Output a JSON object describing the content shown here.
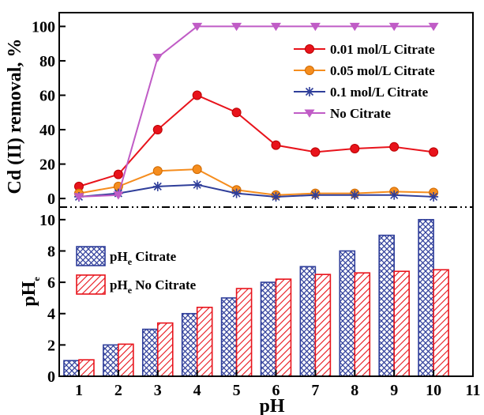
{
  "chart_data": [
    {
      "type": "line",
      "ylabel": "Cd (II) removal, %",
      "xlim": [
        0.5,
        11
      ],
      "ylim": [
        -5,
        108
      ],
      "y_ticks": [
        "0",
        "20",
        "40",
        "60",
        "80",
        "100"
      ],
      "x": [
        1,
        2,
        3,
        4,
        5,
        6,
        7,
        8,
        9,
        10
      ],
      "legend_position": "top-right",
      "grid": false,
      "series": [
        {
          "name": "0.01 mol/L Citrate",
          "color": "#e8131b",
          "marker": "circle",
          "values": [
            7,
            14,
            40,
            60,
            50,
            31,
            27,
            29,
            30,
            27
          ]
        },
        {
          "name": "0.05 mol/L Citrate",
          "color": "#f58d1e",
          "marker": "circle",
          "values": [
            3,
            7,
            16,
            17,
            5,
            2,
            3,
            3,
            4,
            3.5
          ]
        },
        {
          "name": "0.1 mol/L Citrate",
          "color": "#2f3e9a",
          "marker": "star",
          "values": [
            1,
            3,
            7,
            8,
            3,
            1,
            2,
            2,
            2,
            1
          ]
        },
        {
          "name": "No Citrate",
          "color": "#c05cc6",
          "marker": "triangle-down",
          "values": [
            1,
            2,
            82,
            100,
            100,
            100,
            100,
            100,
            100,
            100
          ]
        }
      ]
    },
    {
      "type": "bar",
      "xlabel": "pH",
      "ylabel": "pHe",
      "ylabel_main": "pH",
      "ylabel_sub": "e",
      "xlim": [
        0.5,
        11
      ],
      "ylim": [
        0,
        10.8
      ],
      "y_ticks": [
        "0",
        "2",
        "4",
        "6",
        "8",
        "10"
      ],
      "x_ticks": [
        "1",
        "2",
        "3",
        "4",
        "5",
        "6",
        "7",
        "8",
        "9",
        "10",
        "11"
      ],
      "categories": [
        1,
        2,
        3,
        4,
        5,
        6,
        7,
        8,
        9,
        10
      ],
      "legend_position": "top-left",
      "series": [
        {
          "name": "pHe Citrate",
          "label_main": "pH",
          "label_sub": "e",
          "label_rest": " Citrate",
          "color": "#2f3e9a",
          "pattern": "crosshatch",
          "values": [
            1,
            2,
            3,
            4,
            5,
            6,
            7,
            8,
            9,
            10
          ]
        },
        {
          "name": "pHe No Citrate",
          "label_main": "pH",
          "label_sub": "e",
          "label_rest": " No Citrate",
          "color": "#e8131b",
          "pattern": "diagonal",
          "values": [
            1.05,
            2.05,
            3.4,
            4.4,
            5.6,
            6.2,
            6.5,
            6.6,
            6.7,
            6.8
          ]
        }
      ]
    }
  ]
}
